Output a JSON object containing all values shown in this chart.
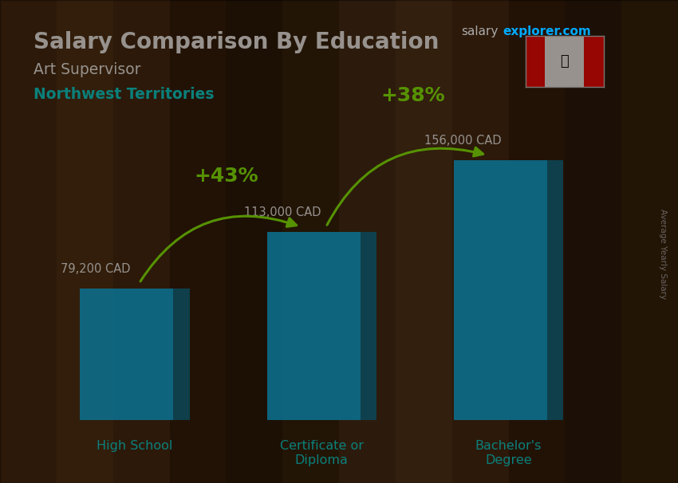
{
  "title_main": "Salary Comparison By Education",
  "subtitle1": "Art Supervisor",
  "subtitle2": "Northwest Territories",
  "categories": [
    "High School",
    "Certificate or\nDiploma",
    "Bachelor's\nDegree"
  ],
  "values": [
    79200,
    113000,
    156000
  ],
  "value_labels": [
    "79,200 CAD",
    "113,000 CAD",
    "156,000 CAD"
  ],
  "pct_labels": [
    "+43%",
    "+38%"
  ],
  "bar_color_face": "#00BFFF",
  "bar_color_dark": "#007399",
  "bar_color_top": "#33CCFF",
  "title_color": "#ffffff",
  "subtitle1_color": "#ffffff",
  "subtitle2_color": "#00DDDD",
  "value_label_color": "#ffffff",
  "pct_color": "#88FF00",
  "xlabel_color": "#00DDDD",
  "ylabel_text": "Average Yearly Salary",
  "ylabel_color": "#aaaaaa",
  "site_color_salary": "#aaaaaa",
  "site_color_explorer": "#00AAFF",
  "arrow_color": "#88FF00",
  "bg_colors": [
    "#3a2510",
    "#2a1a08",
    "#1a1005",
    "#3a2510"
  ],
  "ylim": [
    0,
    200000
  ]
}
